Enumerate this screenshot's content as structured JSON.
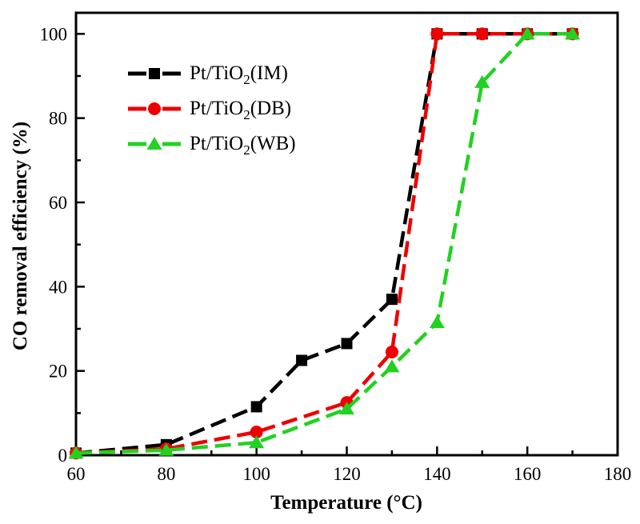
{
  "chart_data": {
    "type": "line",
    "title": "",
    "xlabel": "Temperature (°C)",
    "ylabel": "CO removal efficiency (%)",
    "xlim": [
      60,
      180
    ],
    "ylim": [
      0,
      105
    ],
    "x_major_ticks": [
      60,
      80,
      100,
      120,
      140,
      160,
      180
    ],
    "x_minor_ticks": [
      70,
      90,
      110,
      130,
      150,
      170
    ],
    "y_major_ticks": [
      0,
      20,
      40,
      60,
      80,
      100
    ],
    "y_minor_ticks": [
      10,
      30,
      50,
      70,
      90
    ],
    "grid": false,
    "legend_position": "upper-left-inside",
    "line_style": "dashed",
    "axis_color": "#000000",
    "series": [
      {
        "id": "im",
        "name": "Pt/TiO2(IM)",
        "label_prefix": "Pt/TiO",
        "label_sub": "2",
        "label_suffix": "(IM)",
        "color": "#000000",
        "marker": "square",
        "points": [
          [
            60,
            0.5
          ],
          [
            80,
            2.5
          ],
          [
            100,
            11.5
          ],
          [
            110,
            22.5
          ],
          [
            120,
            26.5
          ],
          [
            130,
            37
          ],
          [
            140,
            100
          ],
          [
            150,
            100
          ],
          [
            160,
            100
          ],
          [
            170,
            100
          ]
        ]
      },
      {
        "id": "db",
        "name": "Pt/TiO2(DB)",
        "label_prefix": "Pt/TiO",
        "label_sub": "2",
        "label_suffix": "(DB)",
        "color": "#ee0000",
        "marker": "circle",
        "points": [
          [
            60,
            0.5
          ],
          [
            80,
            1.5
          ],
          [
            100,
            5.5
          ],
          [
            120,
            12.5
          ],
          [
            130,
            24.5
          ],
          [
            140,
            100
          ],
          [
            150,
            100
          ],
          [
            160,
            100
          ],
          [
            170,
            100
          ]
        ]
      },
      {
        "id": "wb",
        "name": "Pt/TiO2(WB)",
        "label_prefix": "Pt/TiO",
        "label_sub": "2",
        "label_suffix": "(WB)",
        "color": "#22d122",
        "marker": "triangle",
        "points": [
          [
            60,
            0.5
          ],
          [
            80,
            1.2
          ],
          [
            100,
            3
          ],
          [
            120,
            11
          ],
          [
            130,
            21
          ],
          [
            140,
            31.5
          ],
          [
            150,
            88.5
          ],
          [
            160,
            100
          ],
          [
            170,
            100
          ]
        ]
      }
    ]
  }
}
